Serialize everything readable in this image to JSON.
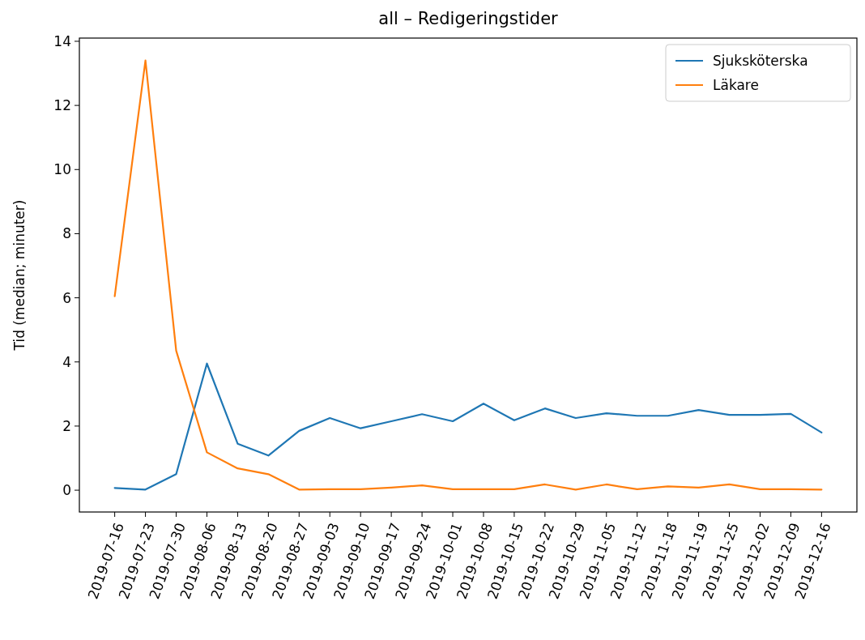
{
  "chart_data": {
    "type": "line",
    "title": "all – Redigeringstider",
    "ylabel": "Tid (median; minuter)",
    "categories": [
      "2019-07-16",
      "2019-07-23",
      "2019-07-30",
      "2019-08-06",
      "2019-08-13",
      "2019-08-20",
      "2019-08-27",
      "2019-09-03",
      "2019-09-10",
      "2019-09-17",
      "2019-09-24",
      "2019-10-01",
      "2019-10-08",
      "2019-10-15",
      "2019-10-22",
      "2019-10-29",
      "2019-11-05",
      "2019-11-12",
      "2019-11-18",
      "2019-11-19",
      "2019-11-25",
      "2019-12-02",
      "2019-12-09",
      "2019-12-16"
    ],
    "series": [
      {
        "name": "Sjuksköterska",
        "color": "#1f77b4",
        "values": [
          0.07,
          0.02,
          0.5,
          3.95,
          1.45,
          1.08,
          1.85,
          2.25,
          1.93,
          2.15,
          2.37,
          2.15,
          2.7,
          2.18,
          2.55,
          2.25,
          2.4,
          2.32,
          2.32,
          2.5,
          2.35,
          2.35,
          2.38,
          1.8
        ]
      },
      {
        "name": "Läkare",
        "color": "#ff7f0e",
        "values": [
          6.05,
          13.4,
          4.35,
          1.18,
          0.68,
          0.5,
          0.02,
          0.03,
          0.03,
          0.08,
          0.15,
          0.03,
          0.03,
          0.03,
          0.18,
          0.02,
          0.18,
          0.03,
          0.12,
          0.08,
          0.18,
          0.03,
          0.03,
          0.02
        ]
      }
    ],
    "ylim": [
      -0.68,
      14.1
    ],
    "yticks": [
      0,
      2,
      4,
      6,
      8,
      10,
      12,
      14
    ],
    "legend": "top right",
    "grid": false
  }
}
